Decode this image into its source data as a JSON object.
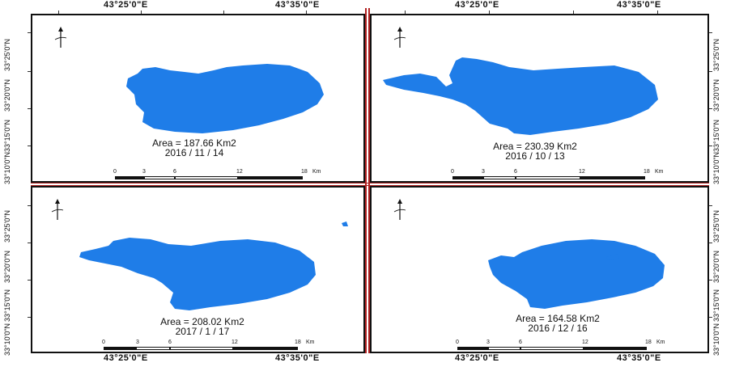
{
  "coords": {
    "top_left": "43°25'0\"E",
    "top_right": "43°35'0\"E",
    "top_left_2": "43°25'0\"E",
    "top_right_2": "43°35'0\"E",
    "bottom_left": "43°25'0\"E",
    "bottom_right": "43°35'0\"E",
    "bottom_left_2": "43°25'0\"E",
    "bottom_right_2": "43°35'0\"E",
    "lat_left": [
      "33°25'0\"N",
      "33°20'0\"N",
      "33°15'0\"N",
      "33°10'0\"N"
    ],
    "lat_right": [
      "33°25'0\"N",
      "33°20'0\"N",
      "33°15'0\"N",
      "33°10'0\"N"
    ]
  },
  "panels": [
    {
      "area": "Area = 187.66 Km2",
      "date": "2016 / 11 / 14"
    },
    {
      "area": "Area = 230.39 Km2",
      "date": "2016 / 10 / 13"
    },
    {
      "area": "Area = 208.02 Km2",
      "date": "2017 / 1 / 17"
    },
    {
      "area": "Area = 164.58 Km2",
      "date": "2016 / 12 / 16"
    }
  ],
  "scale_bar": {
    "ticks": [
      "0",
      "3",
      "6",
      "12",
      "18"
    ],
    "unit": "Km"
  },
  "colors": {
    "water": "#1f7de8",
    "frame": "#111111",
    "divider": "#b22222"
  }
}
